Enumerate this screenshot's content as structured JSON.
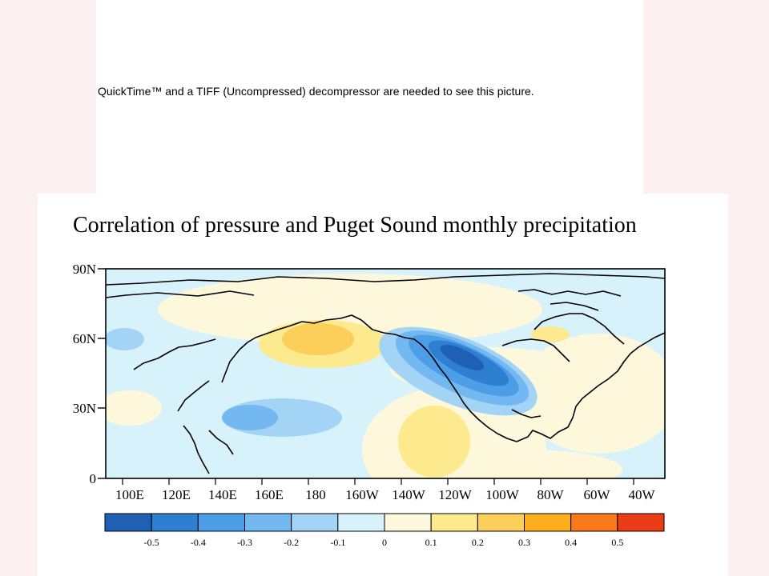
{
  "placeholder": {
    "message": "QuickTime™ and a TIFF (Uncompressed) decompressor are needed to see this picture."
  },
  "figure": {
    "title": "Correlation of pressure and Puget Sound monthly precipitation",
    "lat_labels": [
      "90N",
      "60N",
      "30N",
      "0"
    ],
    "lon_labels": [
      "100E",
      "120E",
      "140E",
      "160E",
      "180",
      "160W",
      "140W",
      "120W",
      "100W",
      "80W",
      "60W",
      "40W"
    ],
    "colorbar": {
      "labels": [
        "-0.5",
        "-0.4",
        "-0.3",
        "-0.2",
        "-0.1",
        "0",
        "0.1",
        "0.2",
        "0.3",
        "0.4",
        "0.5"
      ],
      "colors": [
        "#1f5fb4",
        "#2e7fd2",
        "#4c9ee6",
        "#73b8f0",
        "#a3d4f6",
        "#d8f2fb",
        "#fdf8dc",
        "#fde98e",
        "#fcce5a",
        "#fcae1c",
        "#f87a1b",
        "#ea3c16"
      ]
    },
    "colors": {
      "neutral_negative": "#d8f2fb",
      "positive_weak": "#fdf8dc",
      "negative_strong": "#1f5fb4"
    }
  }
}
